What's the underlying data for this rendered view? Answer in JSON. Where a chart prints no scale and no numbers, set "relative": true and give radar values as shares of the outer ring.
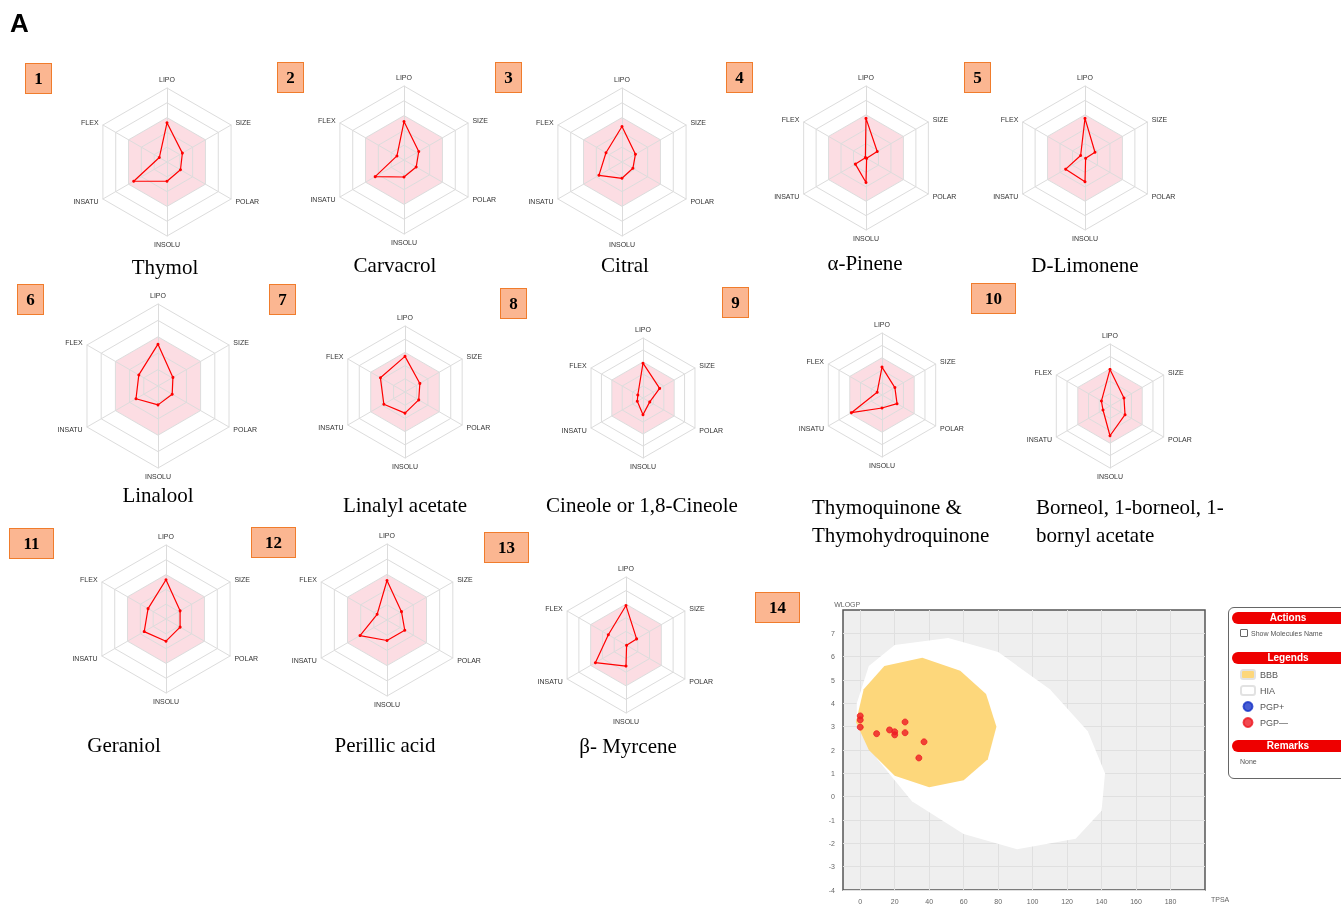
{
  "chart_data": [
    {
      "type": "radar",
      "title": "Thymol",
      "annotations": [
        "1",
        "A"
      ],
      "categories": [
        "LIPO",
        "SIZE",
        "POLAR",
        "INSOLU",
        "INSATU",
        "FLEX"
      ],
      "relative": true,
      "marker": "circle",
      "series": [
        {
          "color": "#ff0000",
          "values": [
            0.53,
            0.24,
            0.21,
            0.26,
            0.52,
            0.12
          ]
        }
      ]
    },
    {
      "type": "radar",
      "title": "Carvacrol",
      "annotations": [
        "2"
      ],
      "categories": [
        "LIPO",
        "SIZE",
        "POLAR",
        "INSOLU",
        "INSATU",
        "FLEX"
      ],
      "relative": true,
      "marker": "circle",
      "series": [
        {
          "color": "#ff0000",
          "values": [
            0.52,
            0.23,
            0.19,
            0.23,
            0.45,
            0.11
          ]
        }
      ]
    },
    {
      "type": "radar",
      "title": "Citral",
      "annotations": [
        "3"
      ],
      "categories": [
        "LIPO",
        "SIZE",
        "POLAR",
        "INSOLU",
        "INSATU",
        "FLEX"
      ],
      "relative": true,
      "marker": "circle",
      "series": [
        {
          "color": "#ff0000",
          "values": [
            0.48,
            0.21,
            0.17,
            0.22,
            0.36,
            0.25
          ]
        }
      ]
    },
    {
      "type": "radar",
      "title": "α-Pinene",
      "annotations": [
        "4"
      ],
      "categories": [
        "LIPO",
        "SIZE",
        "POLAR",
        "INSOLU",
        "INSATU",
        "FLEX"
      ],
      "relative": true,
      "marker": "circle",
      "series": [
        {
          "color": "#ff0000",
          "values": [
            0.55,
            0.18,
            0.01,
            0.34,
            0.17,
            0.01
          ]
        }
      ]
    },
    {
      "type": "radar",
      "title": "D-Limonene",
      "annotations": [
        "5"
      ],
      "categories": [
        "LIPO",
        "SIZE",
        "POLAR",
        "INSOLU",
        "INSATU",
        "FLEX"
      ],
      "relative": true,
      "marker": "circle",
      "series": [
        {
          "color": "#ff0000",
          "values": [
            0.55,
            0.16,
            0.01,
            0.33,
            0.31,
            0.07
          ]
        }
      ]
    },
    {
      "type": "radar",
      "title": "Linalool",
      "annotations": [
        "6"
      ],
      "categories": [
        "LIPO",
        "SIZE",
        "POLAR",
        "INSOLU",
        "INSATU",
        "FLEX"
      ],
      "relative": true,
      "marker": "circle",
      "series": [
        {
          "color": "#ff0000",
          "values": [
            0.51,
            0.21,
            0.2,
            0.23,
            0.31,
            0.27
          ]
        }
      ]
    },
    {
      "type": "radar",
      "title": "Linalyl acetate",
      "annotations": [
        "7"
      ],
      "categories": [
        "LIPO",
        "SIZE",
        "POLAR",
        "INSOLU",
        "INSATU",
        "FLEX"
      ],
      "relative": true,
      "marker": "circle",
      "series": [
        {
          "color": "#ff0000",
          "values": [
            0.54,
            0.26,
            0.24,
            0.32,
            0.37,
            0.43
          ]
        }
      ]
    },
    {
      "type": "radar",
      "title": "Cineole or 1,8-Cineole",
      "annotations": [
        "8"
      ],
      "categories": [
        "LIPO",
        "SIZE",
        "POLAR",
        "INSOLU",
        "INSATU",
        "FLEX"
      ],
      "relative": true,
      "marker": "circle",
      "series": [
        {
          "color": "#ff0000",
          "values": [
            0.58,
            0.32,
            0.13,
            0.28,
            0.11,
            0.1
          ]
        }
      ]
    },
    {
      "type": "radar",
      "title": "Thymoquinone & Thymohydroquinone",
      "annotations": [
        "9"
      ],
      "categories": [
        "LIPO",
        "SIZE",
        "POLAR",
        "INSOLU",
        "INSATU",
        "FLEX"
      ],
      "relative": true,
      "marker": "circle",
      "series": [
        {
          "color": "#ff0000",
          "values": [
            0.45,
            0.24,
            0.28,
            0.21,
            0.57,
            0.09
          ]
        }
      ]
    },
    {
      "type": "radar",
      "title": "Borneol, 1-borneol, 1-bornyl acetate",
      "annotations": [
        "10"
      ],
      "categories": [
        "LIPO",
        "SIZE",
        "POLAR",
        "INSOLU",
        "INSATU",
        "FLEX"
      ],
      "relative": true,
      "marker": "circle",
      "series": [
        {
          "color": "#ff0000",
          "values": [
            0.59,
            0.26,
            0.28,
            0.48,
            0.13,
            0.16
          ]
        }
      ]
    },
    {
      "type": "radar",
      "title": "Geraniol",
      "annotations": [
        "11"
      ],
      "categories": [
        "LIPO",
        "SIZE",
        "POLAR",
        "INSOLU",
        "INSATU",
        "FLEX"
      ],
      "relative": true,
      "marker": "circle",
      "series": [
        {
          "color": "#ff0000",
          "values": [
            0.53,
            0.22,
            0.22,
            0.3,
            0.34,
            0.28
          ]
        }
      ]
    },
    {
      "type": "radar",
      "title": "Perillic acid",
      "annotations": [
        "12"
      ],
      "categories": [
        "LIPO",
        "SIZE",
        "POLAR",
        "INSOLU",
        "INSATU",
        "FLEX"
      ],
      "relative": true,
      "marker": "circle",
      "series": [
        {
          "color": "#ff0000",
          "values": [
            0.52,
            0.22,
            0.27,
            0.27,
            0.41,
            0.15
          ]
        }
      ]
    },
    {
      "type": "radar",
      "title": "β- Myrcene",
      "annotations": [
        "13"
      ],
      "categories": [
        "LIPO",
        "SIZE",
        "POLAR",
        "INSOLU",
        "INSATU",
        "FLEX"
      ],
      "relative": true,
      "marker": "circle",
      "series": [
        {
          "color": "#ff0000",
          "values": [
            0.58,
            0.18,
            0.01,
            0.31,
            0.52,
            0.3
          ]
        }
      ]
    },
    {
      "type": "scatter",
      "annotations": [
        "14",
        "Actions",
        "Show Molecules Name",
        "Remarks",
        "None"
      ],
      "xlabel": "TPSA",
      "ylabel": "WLOGP",
      "legend_title": "Legends",
      "legend": "right",
      "grid": true,
      "marker": "circle",
      "xlim": [
        -10,
        200
      ],
      "ylim": [
        -4,
        8
      ],
      "xticks": [
        0,
        20,
        40,
        60,
        80,
        100,
        120,
        140,
        160,
        180
      ],
      "yticks": [
        -4,
        -3,
        -2,
        -1,
        0,
        1,
        2,
        3,
        4,
        5,
        6,
        7
      ],
      "series": [
        {
          "type": "area",
          "marker": "none",
          "name": "BBB",
          "color": "#fdd77b",
          "x": [
            -2.5,
            2,
            14,
            36,
            58,
            73,
            79,
            74,
            60,
            40,
            20,
            5,
            -2.5
          ],
          "values": [
            3.2,
            4.6,
            5.6,
            5.95,
            5.4,
            4.4,
            3.0,
            1.6,
            0.7,
            0.4,
            0.9,
            2.0,
            3.2
          ]
        },
        {
          "type": "area",
          "marker": "none",
          "name": "HIA",
          "color": "#ffffff",
          "x": [
            -2,
            5,
            20,
            51,
            80,
            110,
            132,
            142,
            140,
            125,
            91,
            60,
            30,
            10,
            -2,
            -2
          ],
          "values": [
            4.0,
            5.6,
            6.5,
            6.8,
            6.2,
            4.6,
            2.8,
            1.0,
            -0.6,
            -1.8,
            -2.25,
            -1.6,
            -0.2,
            1.6,
            3.2,
            4.0
          ]
        },
        {
          "name": "PGP+",
          "color": "#1a36c8"
        },
        {
          "name": "PGP—",
          "color": "#ee1c24",
          "x": [
            0,
            0,
            0,
            9.5,
            17,
            20,
            20,
            26,
            26,
            37,
            34
          ],
          "values": [
            3.46,
            3.29,
            2.98,
            2.7,
            2.86,
            2.78,
            2.65,
            3.2,
            2.74,
            2.35,
            1.66
          ]
        }
      ]
    }
  ]
}
